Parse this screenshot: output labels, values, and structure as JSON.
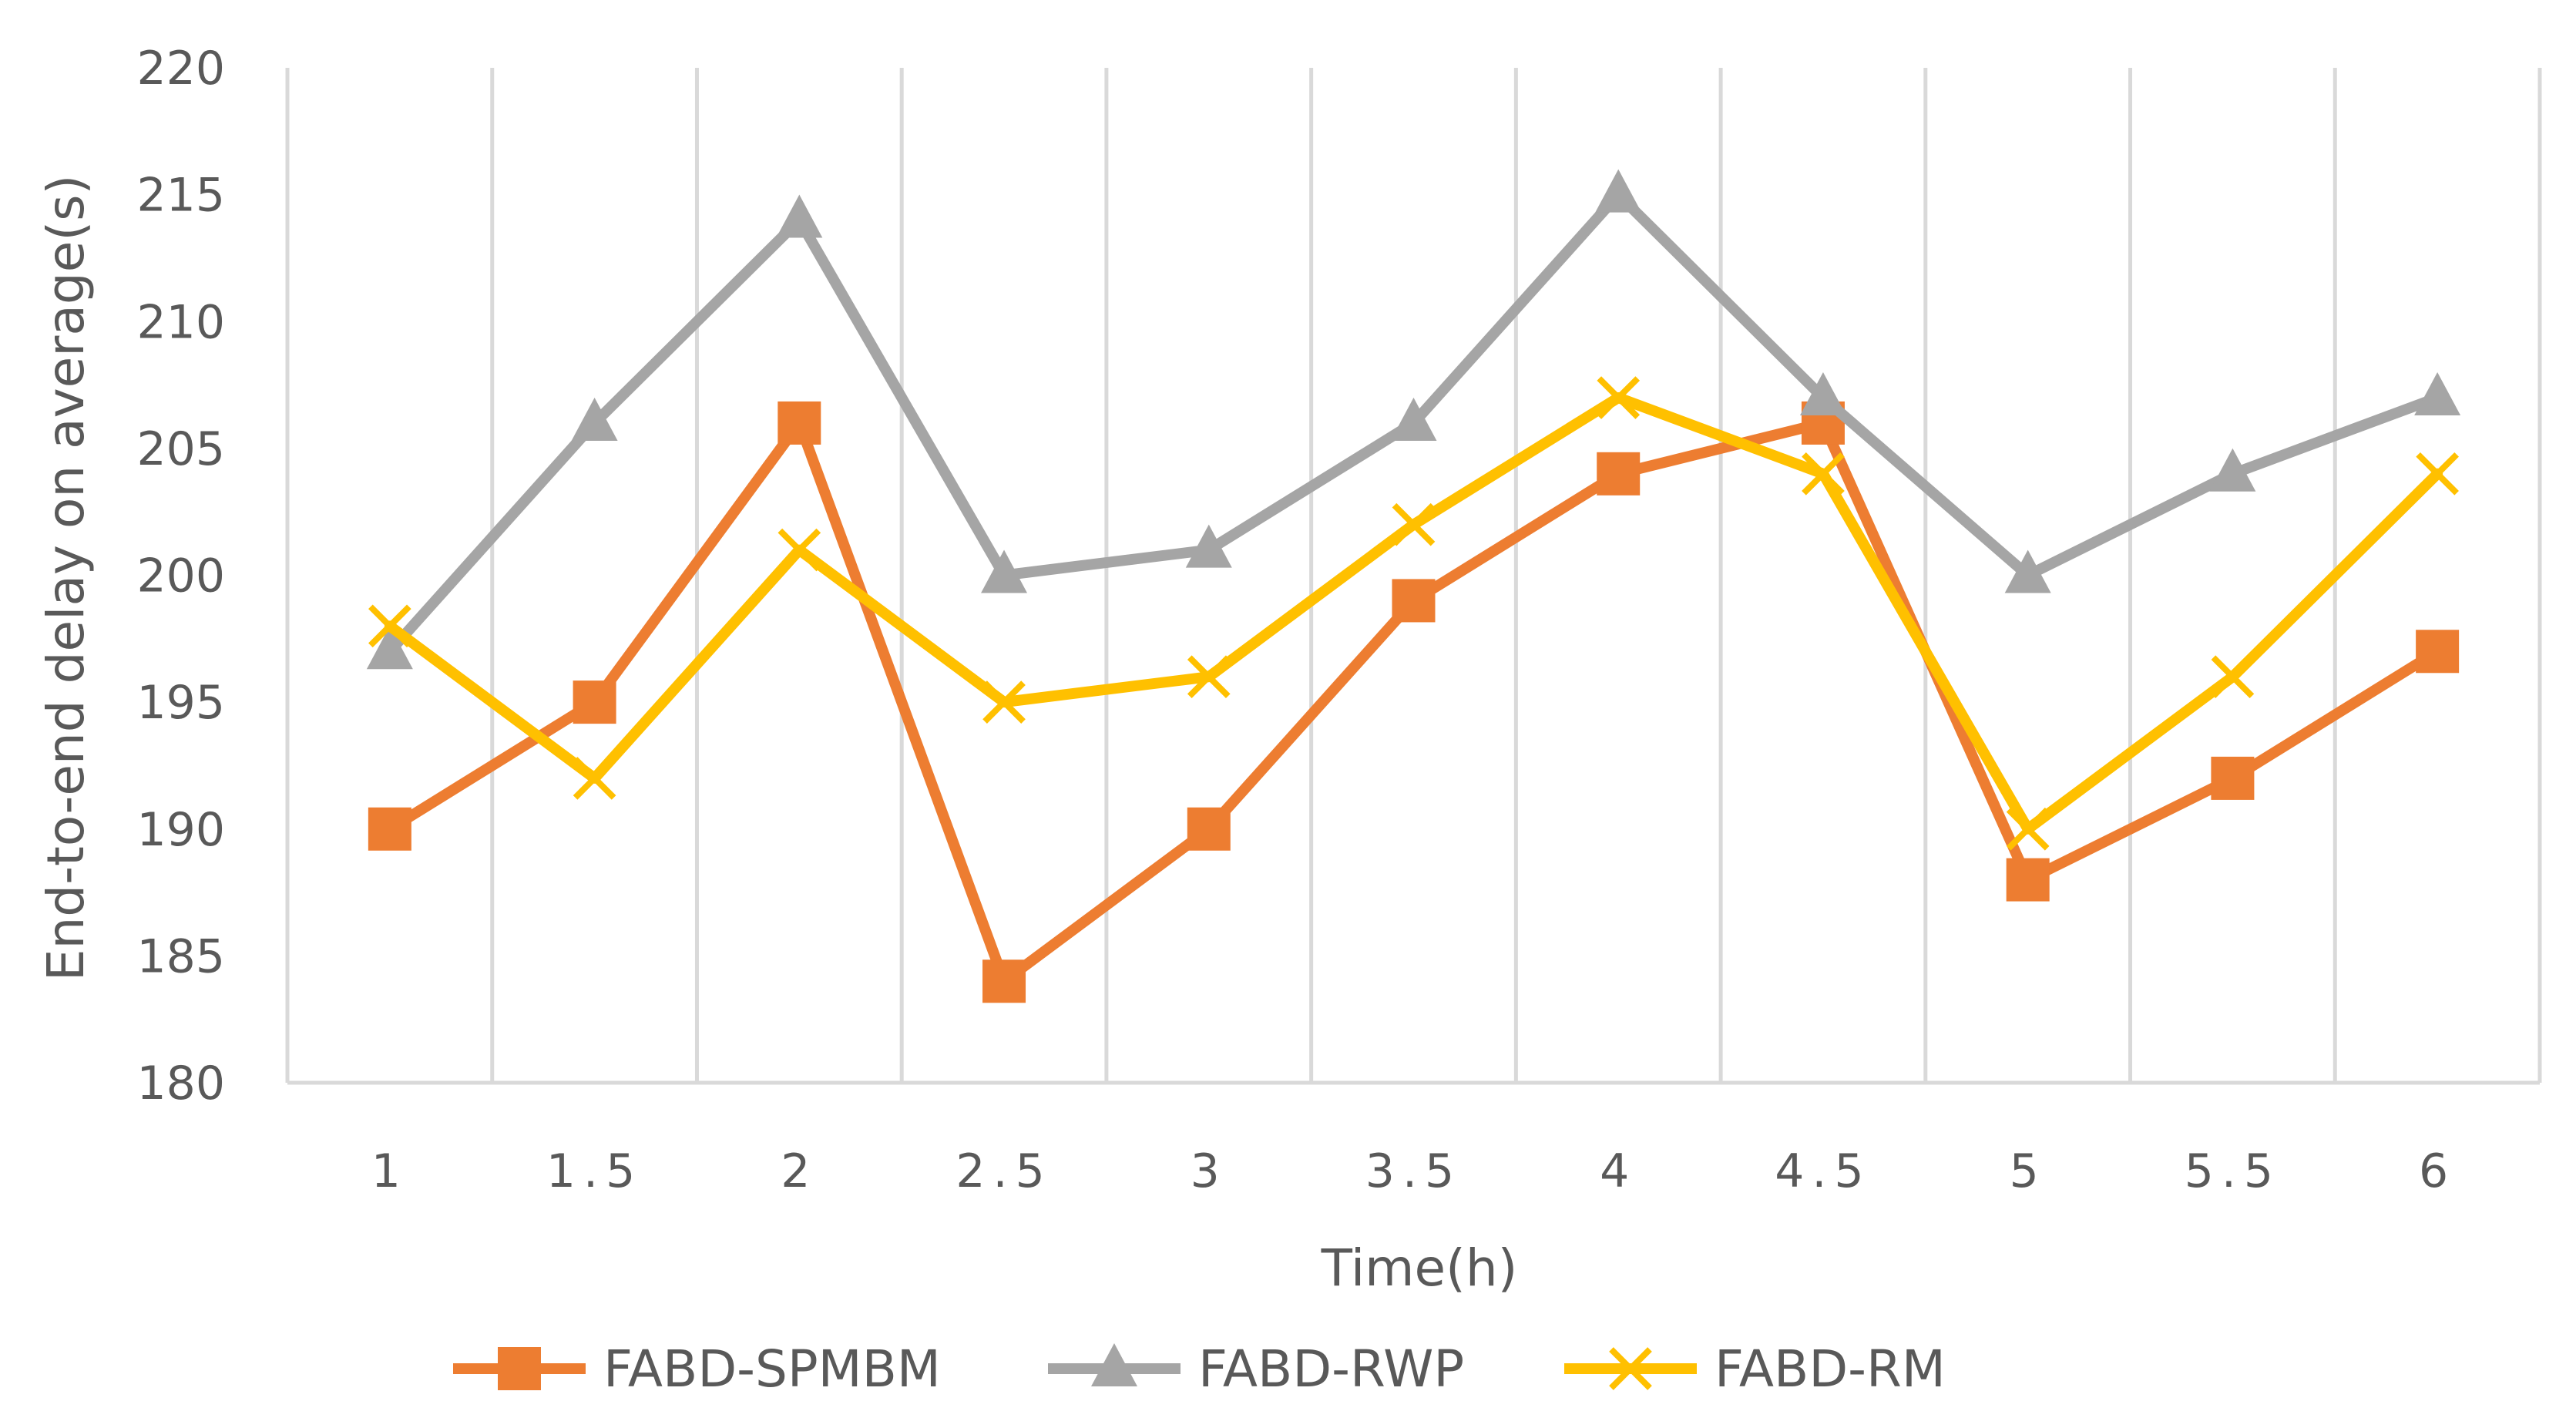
{
  "chart_data": {
    "type": "line",
    "title": "",
    "xlabel": "Time(h)",
    "ylabel": "End-to-end delay on average(s)",
    "categories": [
      "1",
      "1.5",
      "2",
      "2.5",
      "3",
      "3.5",
      "4",
      "4.5",
      "5",
      "5.5",
      "6"
    ],
    "ylim": [
      180,
      220
    ],
    "yticks": [
      180,
      185,
      190,
      195,
      200,
      205,
      210,
      215,
      220
    ],
    "grid": "vertical",
    "legend_position": "bottom",
    "series": [
      {
        "name": "FABD-SPMBM",
        "color": "#ED7D31",
        "marker": "square",
        "values": [
          190,
          195,
          206,
          184,
          190,
          199,
          204,
          206,
          188,
          192,
          197
        ]
      },
      {
        "name": "FABD-RWP",
        "color": "#A5A5A5",
        "marker": "triangle",
        "values": [
          197,
          206,
          214,
          200,
          201,
          206,
          215,
          207,
          200,
          204,
          207
        ]
      },
      {
        "name": "FABD-RM",
        "color": "#FFC000",
        "marker": "x",
        "values": [
          198,
          192,
          201,
          195,
          196,
          202,
          207,
          204,
          190,
          196,
          204
        ]
      }
    ]
  }
}
